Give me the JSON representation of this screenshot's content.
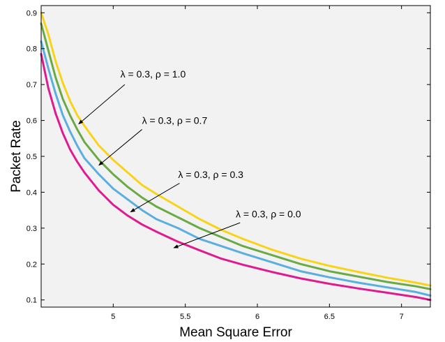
{
  "chart_data": {
    "type": "line",
    "title": "",
    "xlabel": "Mean Square Error",
    "ylabel": "Packet Rate",
    "xlim": [
      4.5,
      7.2
    ],
    "ylim": [
      0.08,
      0.92
    ],
    "xticks": [
      "5",
      "5.5",
      "6",
      "6.5",
      "7"
    ],
    "yticks": [
      "0.1",
      "0.2",
      "0.3",
      "0.4",
      "0.5",
      "0.6",
      "0.7",
      "0.8",
      "0.9"
    ],
    "xtick_values": [
      5,
      5.5,
      6,
      6.5,
      7
    ],
    "ytick_values": [
      0.1,
      0.2,
      0.3,
      0.4,
      0.5,
      0.6,
      0.7,
      0.8,
      0.9
    ],
    "background": "#f2f2f2",
    "grid": false,
    "series": [
      {
        "color": "#f7d417",
        "x": [
          4.5,
          4.55,
          4.6,
          4.65,
          4.7,
          4.75,
          4.8,
          4.9,
          5.0,
          5.1,
          5.2,
          5.3,
          5.45,
          5.6,
          5.75,
          5.9,
          6.1,
          6.3,
          6.5,
          6.7,
          6.9,
          7.1,
          7.2
        ],
        "y": [
          0.9,
          0.84,
          0.765,
          0.705,
          0.655,
          0.615,
          0.585,
          0.53,
          0.49,
          0.455,
          0.42,
          0.395,
          0.36,
          0.325,
          0.295,
          0.27,
          0.24,
          0.215,
          0.195,
          0.178,
          0.162,
          0.148,
          0.14
        ]
      },
      {
        "color": "#6aaa44",
        "x": [
          4.5,
          4.55,
          4.6,
          4.65,
          4.7,
          4.75,
          4.8,
          4.9,
          5.0,
          5.1,
          5.2,
          5.3,
          5.45,
          5.6,
          5.75,
          5.9,
          6.1,
          6.3,
          6.5,
          6.7,
          6.9,
          7.1,
          7.2
        ],
        "y": [
          0.87,
          0.795,
          0.72,
          0.66,
          0.615,
          0.575,
          0.54,
          0.49,
          0.45,
          0.415,
          0.385,
          0.36,
          0.33,
          0.3,
          0.275,
          0.25,
          0.225,
          0.2,
          0.18,
          0.165,
          0.15,
          0.138,
          0.13
        ]
      },
      {
        "color": "#5aaee0",
        "x": [
          4.5,
          4.55,
          4.6,
          4.65,
          4.7,
          4.75,
          4.8,
          4.9,
          5.0,
          5.1,
          5.2,
          5.3,
          5.45,
          5.6,
          5.75,
          5.9,
          6.1,
          6.3,
          6.5,
          6.7,
          6.9,
          7.1,
          7.2
        ],
        "y": [
          0.82,
          0.745,
          0.675,
          0.615,
          0.57,
          0.53,
          0.495,
          0.45,
          0.41,
          0.38,
          0.35,
          0.325,
          0.3,
          0.27,
          0.25,
          0.23,
          0.205,
          0.18,
          0.163,
          0.148,
          0.135,
          0.122,
          0.112
        ]
      },
      {
        "color": "#e01a8f",
        "x": [
          4.5,
          4.55,
          4.6,
          4.65,
          4.7,
          4.75,
          4.8,
          4.9,
          5.0,
          5.1,
          5.2,
          5.3,
          5.45,
          5.6,
          5.75,
          5.9,
          6.1,
          6.3,
          6.5,
          6.7,
          6.9,
          7.1,
          7.2
        ],
        "y": [
          0.785,
          0.69,
          0.62,
          0.565,
          0.52,
          0.485,
          0.455,
          0.405,
          0.365,
          0.335,
          0.31,
          0.29,
          0.262,
          0.238,
          0.215,
          0.198,
          0.178,
          0.16,
          0.145,
          0.132,
          0.12,
          0.108,
          0.1
        ]
      }
    ],
    "annotations": [
      {
        "text": "λ = 0.3,  ρ = 1.0",
        "label_at": [
          5.05,
          0.72
        ],
        "arrow_from": [
          5.08,
          0.7
        ],
        "arrow_to": [
          4.76,
          0.59
        ]
      },
      {
        "text": "λ = 0.3,  ρ = 0.7",
        "label_at": [
          5.2,
          0.59
        ],
        "arrow_from": [
          5.2,
          0.575
        ],
        "arrow_to": [
          4.9,
          0.475
        ]
      },
      {
        "text": "λ = 0.3,  ρ = 0.3",
        "label_at": [
          5.45,
          0.44
        ],
        "arrow_from": [
          5.46,
          0.425
        ],
        "arrow_to": [
          5.12,
          0.345
        ]
      },
      {
        "text": "λ = 0.3,  ρ = 0.0",
        "label_at": [
          5.85,
          0.33
        ],
        "arrow_from": [
          5.88,
          0.315
        ],
        "arrow_to": [
          5.42,
          0.245
        ]
      }
    ]
  }
}
